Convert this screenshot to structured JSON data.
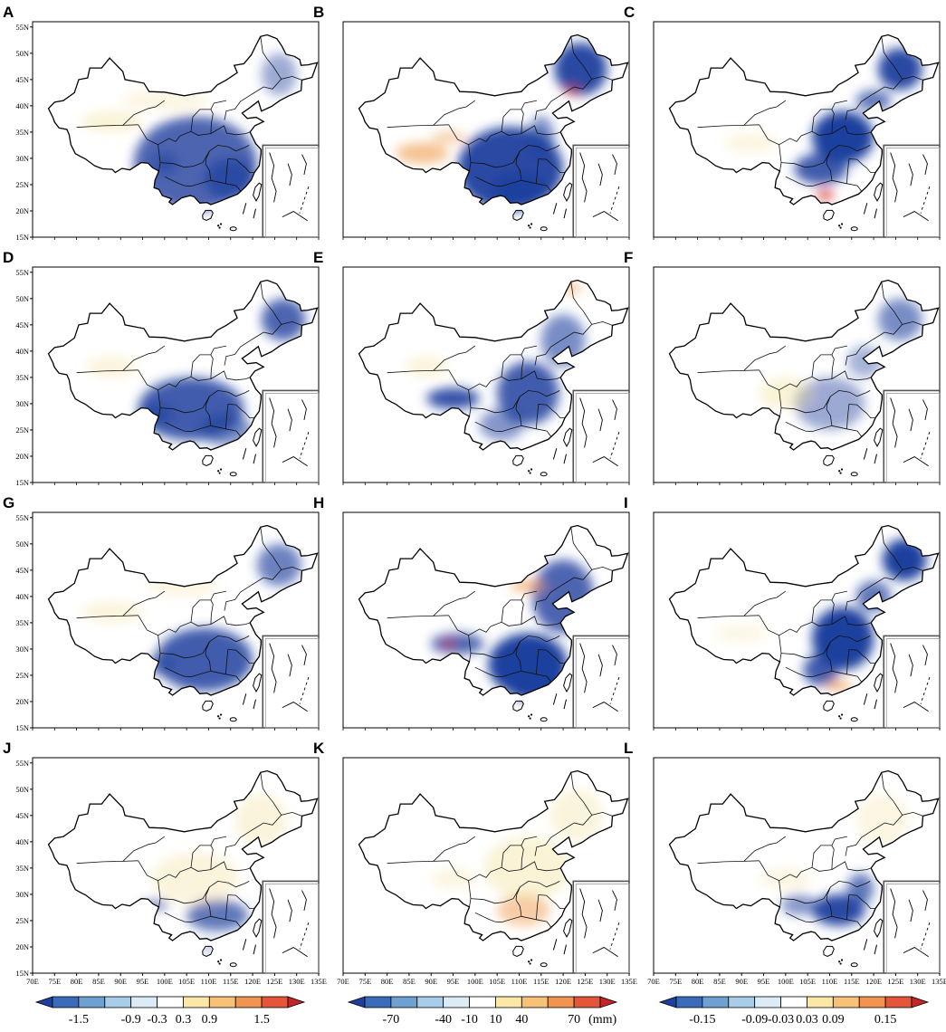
{
  "figure": {
    "panels": [
      {
        "label": "A",
        "pattern": [
          [
            "blue",
            107,
            29,
            14,
            9,
            0.8
          ],
          [
            "blue",
            115,
            26,
            6,
            4,
            0.7
          ],
          [
            "blue",
            100,
            29,
            3,
            2,
            0.55
          ],
          [
            "yellow",
            88,
            37,
            7,
            2,
            0.35
          ],
          [
            "blue",
            126,
            46,
            4,
            4,
            0.45
          ],
          [
            "yellow",
            100,
            41,
            10,
            2,
            0.25
          ]
        ]
      },
      {
        "label": "B",
        "pattern": [
          [
            "blue",
            108,
            28,
            12,
            8,
            0.95
          ],
          [
            "blue",
            110,
            24,
            6,
            3,
            0.95
          ],
          [
            "blue",
            124,
            47,
            6,
            5,
            0.95
          ],
          [
            "orange",
            88,
            31,
            6,
            2,
            0.6
          ],
          [
            "orange",
            94,
            34,
            4,
            1,
            0.5
          ],
          [
            "blue",
            115,
            34,
            3,
            4,
            0.6
          ],
          [
            "red",
            122,
            43,
            2,
            1,
            0.6
          ]
        ]
      },
      {
        "label": "C",
        "pattern": [
          [
            "blue",
            113,
            34,
            7,
            5,
            1.0
          ],
          [
            "blue",
            126,
            47,
            5,
            4,
            0.95
          ],
          [
            "blue",
            108,
            28,
            6,
            3,
            0.85
          ],
          [
            "red",
            109,
            23,
            2,
            1,
            0.8
          ],
          [
            "blue",
            120,
            41,
            4,
            2,
            0.7
          ],
          [
            "yellow",
            92,
            33,
            6,
            2,
            0.25
          ]
        ]
      },
      {
        "label": "D",
        "pattern": [
          [
            "blue",
            106,
            29,
            12,
            6,
            0.85
          ],
          [
            "blue",
            127,
            46,
            5,
            4,
            0.8
          ],
          [
            "blue",
            98,
            28,
            4,
            2,
            0.6
          ],
          [
            "blue",
            114,
            25,
            6,
            3,
            0.6
          ],
          [
            "yellow",
            88,
            37,
            6,
            2,
            0.3
          ]
        ]
      },
      {
        "label": "E",
        "pattern": [
          [
            "blue",
            112,
            32,
            7,
            6,
            0.85
          ],
          [
            "blue",
            95,
            31,
            6,
            2,
            0.9
          ],
          [
            "blue",
            120,
            42,
            5,
            5,
            0.6
          ],
          [
            "orange",
            122,
            52,
            2,
            1,
            0.6
          ],
          [
            "blue",
            106,
            26,
            5,
            3,
            0.55
          ],
          [
            "yellow",
            89,
            37,
            5,
            2,
            0.3
          ]
        ]
      },
      {
        "label": "F",
        "pattern": [
          [
            "blue",
            126,
            46,
            5,
            4,
            0.6
          ],
          [
            "blue",
            110,
            30,
            8,
            5,
            0.45
          ],
          [
            "yellow",
            100,
            32,
            6,
            3,
            0.35
          ],
          [
            "blue",
            118,
            38,
            4,
            3,
            0.4
          ]
        ]
      },
      {
        "label": "G",
        "pattern": [
          [
            "blue",
            109,
            28,
            11,
            6,
            0.85
          ],
          [
            "blue",
            126,
            46,
            5,
            4,
            0.65
          ],
          [
            "blue",
            99,
            27,
            3,
            2,
            0.55
          ],
          [
            "yellow",
            88,
            37,
            7,
            2,
            0.3
          ],
          [
            "yellow",
            104,
            42,
            8,
            2,
            0.25
          ]
        ]
      },
      {
        "label": "H",
        "pattern": [
          [
            "blue",
            112,
            27,
            9,
            6,
            1.0
          ],
          [
            "blue",
            114,
            23,
            7,
            3,
            1.0
          ],
          [
            "blue",
            120,
            40,
            7,
            7,
            0.8
          ],
          [
            "orange",
            112,
            42,
            4,
            1,
            0.7
          ],
          [
            "blue",
            96,
            31,
            6,
            2,
            0.8
          ],
          [
            "red",
            94,
            31,
            1.2,
            0.8,
            0.7
          ]
        ]
      },
      {
        "label": "I",
        "pattern": [
          [
            "blue",
            113,
            32,
            7,
            6,
            1.0
          ],
          [
            "blue",
            127,
            47,
            5,
            4,
            1.0
          ],
          [
            "blue",
            108,
            26,
            4,
            3,
            0.85
          ],
          [
            "orange",
            112,
            23,
            3,
            1,
            0.7
          ],
          [
            "blue",
            120,
            40,
            4,
            3,
            0.7
          ],
          [
            "yellow",
            90,
            33,
            6,
            2,
            0.2
          ]
        ]
      },
      {
        "label": "J",
        "pattern": [
          [
            "blue",
            112,
            26,
            7,
            3,
            0.7
          ],
          [
            "blue",
            98,
            28,
            3,
            1,
            0.6
          ],
          [
            "yellow",
            107,
            33,
            10,
            5,
            0.3
          ],
          [
            "yellow",
            122,
            44,
            6,
            5,
            0.3
          ],
          [
            "blue",
            110,
            20,
            1,
            1,
            0.6
          ]
        ]
      },
      {
        "label": "K",
        "pattern": [
          [
            "orange",
            111,
            27,
            6,
            3,
            0.5
          ],
          [
            "yellow",
            112,
            35,
            10,
            6,
            0.35
          ],
          [
            "yellow",
            123,
            45,
            6,
            5,
            0.3
          ],
          [
            "yellow",
            95,
            33,
            5,
            2,
            0.25
          ]
        ]
      },
      {
        "label": "L",
        "pattern": [
          [
            "blue",
            112,
            27,
            6,
            3,
            0.95
          ],
          [
            "blue",
            117,
            31,
            3,
            3,
            0.7
          ],
          [
            "blue",
            103,
            28,
            4,
            2,
            0.55
          ],
          [
            "yellow",
            122,
            44,
            6,
            5,
            0.25
          ],
          [
            "yellow",
            100,
            33,
            6,
            2,
            0.25
          ]
        ]
      }
    ],
    "lat_ticks": [
      "15N",
      "20N",
      "25N",
      "30N",
      "35N",
      "40N",
      "45N",
      "50N",
      "55N"
    ],
    "lon_ticks": [
      "70E",
      "75E",
      "80E",
      "85E",
      "90E",
      "95E",
      "100E",
      "105E",
      "110E",
      "115E",
      "120E",
      "125E",
      "130E",
      "135E"
    ],
    "colorbars": [
      {
        "labels": [
          "-1.5",
          "-0.9",
          "-0.3",
          "0.3",
          "0.9",
          "1.5"
        ],
        "unit": ""
      },
      {
        "labels": [
          "-70",
          "-40",
          "-10",
          "10",
          "40",
          "70"
        ],
        "unit": "(mm)"
      },
      {
        "labels": [
          "-0.15",
          "-0.09",
          "-0.03",
          "0.03",
          "0.09",
          "0.15"
        ],
        "unit": ""
      }
    ],
    "colors": {
      "blue": "#1f3f9e",
      "yellow": "#f2dc8a",
      "orange": "#ef9a4a",
      "red": "#d73027",
      "segments": [
        "#1f3f9e",
        "#3a6cba",
        "#6fa0d2",
        "#a9cde8",
        "#dcecf6",
        "#ffffff",
        "#fbe7a6",
        "#f7c277",
        "#f19452",
        "#e4553a",
        "#c4252b"
      ]
    }
  }
}
